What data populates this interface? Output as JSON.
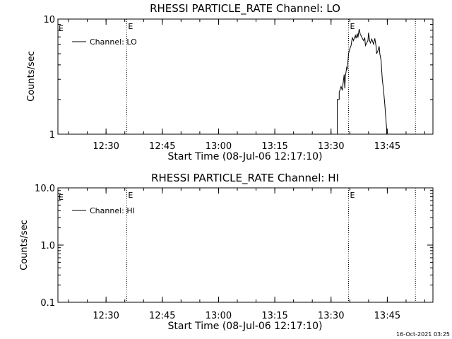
{
  "footer_timestamp": "16-Oct-2021 03:25",
  "time_reference": "2006-07-08T12:17:10",
  "chart_data": [
    {
      "type": "line",
      "title": "RHESSI PARTICLE_RATE Channel: LO",
      "xlabel": "Start Time (08-Jul-06 12:17:10)",
      "ylabel": "Counts/sec",
      "yscale": "log",
      "xlim": [
        "12:17:10",
        "13:57:10"
      ],
      "ylim": [
        1,
        10
      ],
      "xticks": [
        "12:30",
        "12:45",
        "13:00",
        "13:15",
        "13:30",
        "13:45"
      ],
      "yticks": [
        "1",
        "10"
      ],
      "legend": [
        "Channel: LO"
      ],
      "legend_placement": "top-left",
      "event_lines": [
        {
          "time": "12:35:30",
          "label": "E"
        },
        {
          "time": "13:34:40",
          "label": "E"
        },
        {
          "time": "13:52:30",
          "label": ""
        }
      ],
      "series": [
        {
          "name": "Channel: LO",
          "time": [
            "13:31:40",
            "13:31:40",
            "13:32:10",
            "13:32:10",
            "13:32:40",
            "13:33:00",
            "13:33:10",
            "13:33:30",
            "13:33:40",
            "13:33:50",
            "13:34:10",
            "13:34:20",
            "13:34:40",
            "13:35:00",
            "13:35:20",
            "13:35:40",
            "13:36:00",
            "13:36:10",
            "13:36:30",
            "13:36:40",
            "13:37:00",
            "13:37:10",
            "13:37:30",
            "13:37:50",
            "13:38:00",
            "13:38:20",
            "13:38:40",
            "13:39:00",
            "13:39:10",
            "13:39:30",
            "13:39:50",
            "13:40:00",
            "13:40:20",
            "13:40:30",
            "13:40:50",
            "13:41:10",
            "13:41:20",
            "13:41:40",
            "13:42:00",
            "13:42:10",
            "13:42:30",
            "13:42:50",
            "13:43:00",
            "13:43:20",
            "13:43:40",
            "13:44:00",
            "13:44:20",
            "13:44:40",
            "13:44:50",
            "13:44:50"
          ],
          "values": [
            1,
            2,
            2,
            2.3,
            2.6,
            2.4,
            2.7,
            3.3,
            2.5,
            3.2,
            3.8,
            3.7,
            5.0,
            5.5,
            5.9,
            6.9,
            6.5,
            6.8,
            7.2,
            6.8,
            7.5,
            6.9,
            8.2,
            7.3,
            7.2,
            6.8,
            6.5,
            6.9,
            5.9,
            6.2,
            6.5,
            7.6,
            6.4,
            6.2,
            6.7,
            6.3,
            6.0,
            6.8,
            5.8,
            5.0,
            5.3,
            5.8,
            5.0,
            4.4,
            3.0,
            2.4,
            1.8,
            1.3,
            1.1,
            1
          ]
        }
      ]
    },
    {
      "type": "line",
      "title": "RHESSI PARTICLE_RATE Channel: HI",
      "xlabel": "Start Time (08-Jul-06 12:17:10)",
      "ylabel": "Counts/sec",
      "yscale": "log",
      "xlim": [
        "12:17:10",
        "13:57:10"
      ],
      "ylim": [
        0.1,
        10
      ],
      "xticks": [
        "12:30",
        "12:45",
        "13:00",
        "13:15",
        "13:30",
        "13:45"
      ],
      "yticks": [
        "0.1",
        "1.0",
        "10.0"
      ],
      "legend": [
        "Channel: HI"
      ],
      "legend_placement": "top-left",
      "event_lines": [
        {
          "time": "12:35:30",
          "label": "E"
        },
        {
          "time": "13:34:40",
          "label": "E"
        },
        {
          "time": "13:52:30",
          "label": ""
        }
      ],
      "series": [
        {
          "name": "Channel: HI",
          "time": [],
          "values": []
        }
      ]
    }
  ]
}
